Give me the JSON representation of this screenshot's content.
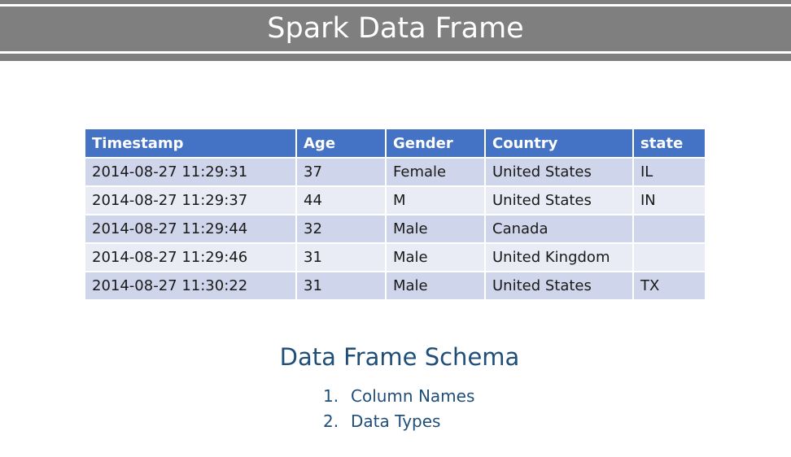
{
  "slide": {
    "title": "Spark Data Frame"
  },
  "table": {
    "headers": [
      "Timestamp",
      "Age",
      "Gender",
      "Country",
      "state"
    ],
    "rows": [
      [
        "2014-08-27 11:29:31",
        "37",
        "Female",
        "United States",
        "IL"
      ],
      [
        "2014-08-27 11:29:37",
        "44",
        "M",
        "United States",
        "IN"
      ],
      [
        "2014-08-27 11:29:44",
        "32",
        "Male",
        "Canada",
        ""
      ],
      [
        "2014-08-27 11:29:46",
        "31",
        "Male",
        "United Kingdom",
        ""
      ],
      [
        "2014-08-27 11:30:22",
        "31",
        "Male",
        "United States",
        "TX"
      ]
    ]
  },
  "schema": {
    "title": "Data Frame Schema",
    "items": [
      {
        "num": "1.",
        "text": "Column Names"
      },
      {
        "num": "2.",
        "text": "Data Types"
      }
    ]
  },
  "colors": {
    "title_band": "#7f7f7f",
    "header_fill": "#4472c4",
    "row_odd": "#cfd5ea",
    "row_even": "#e9ebf5",
    "schema_text": "#1f4e79"
  }
}
